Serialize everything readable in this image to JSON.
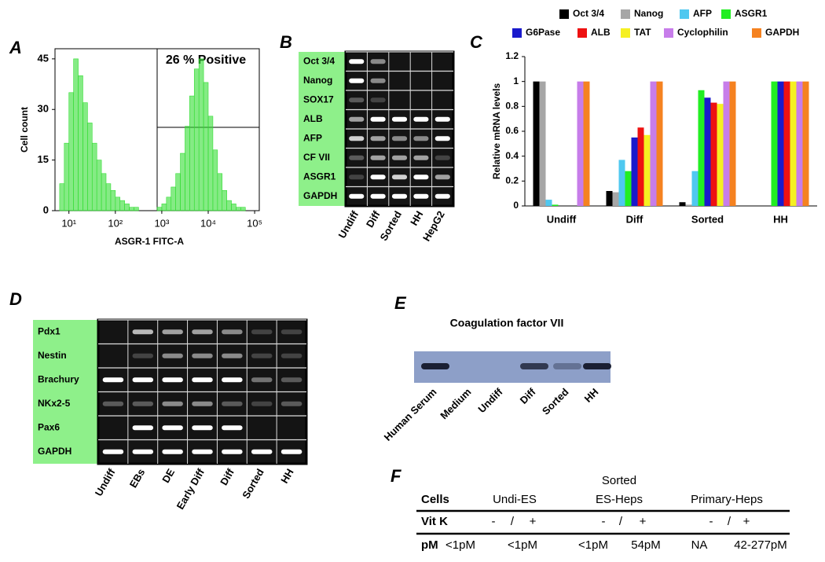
{
  "panel_labels": [
    "A",
    "B",
    "C",
    "D",
    "E",
    "F"
  ],
  "chart_data": [
    {
      "type": "histogram",
      "xlabel": "ASGR-1 FITC-A",
      "ylabel": "Cell count",
      "annotation": "26 % Positive",
      "color": "#33dd33",
      "bins": [
        0.8,
        0.9,
        1.0,
        1.1,
        1.2,
        1.3,
        1.4,
        1.5,
        1.6,
        1.7,
        1.8,
        1.9,
        2.0,
        2.1,
        2.2,
        2.3,
        2.4,
        2.5,
        2.6,
        2.7,
        2.8,
        2.9,
        3.0,
        3.1,
        3.2,
        3.3,
        3.4,
        3.5,
        3.6,
        3.7,
        3.8,
        3.9,
        4.0,
        4.1,
        4.2,
        4.3,
        4.4,
        4.5,
        4.6,
        4.7,
        4.8,
        4.9,
        5.0
      ],
      "values": [
        8,
        20,
        35,
        45,
        40,
        32,
        26,
        20,
        15,
        11,
        8,
        6,
        4,
        3,
        2,
        1,
        1,
        0,
        0,
        0,
        0,
        1,
        2,
        4,
        7,
        11,
        17,
        25,
        34,
        42,
        45,
        38,
        28,
        18,
        11,
        6,
        3,
        2,
        1,
        1,
        0,
        0
      ],
      "xlim": [
        0.7,
        5.1
      ],
      "xticks": [
        {
          "value": 1,
          "label": "10¹"
        },
        {
          "value": 2,
          "label": "10²"
        },
        {
          "value": 3,
          "label": "10³"
        },
        {
          "value": 4,
          "label": "10⁴"
        },
        {
          "value": 5,
          "label": "10⁵"
        }
      ],
      "ylim": [
        0,
        48
      ],
      "yticks": [
        0,
        15,
        30,
        45
      ]
    },
    {
      "type": "bar",
      "ylabel": "Relative mRNA levels",
      "categories": [
        "Undiff",
        "Diff",
        "Sorted",
        "HH"
      ],
      "series": [
        {
          "name": "Oct 3/4",
          "color": "#000000",
          "values": [
            1,
            0.12,
            0.03,
            0
          ]
        },
        {
          "name": "Nanog",
          "color": "#a6a6a6",
          "values": [
            1,
            0.11,
            0.01,
            0
          ]
        },
        {
          "name": "AFP",
          "color": "#4fc8f0",
          "values": [
            0.05,
            0.37,
            0.28,
            0
          ]
        },
        {
          "name": "ASGR1",
          "color": "#22ee22",
          "values": [
            0.01,
            0.28,
            0.93,
            1
          ]
        },
        {
          "name": "G6Pase",
          "color": "#1a1acc",
          "values": [
            0,
            0.55,
            0.87,
            1
          ]
        },
        {
          "name": "ALB",
          "color": "#ee1111",
          "values": [
            0,
            0.63,
            0.83,
            1
          ]
        },
        {
          "name": "TAT",
          "color": "#f5f022",
          "values": [
            0,
            0.57,
            0.82,
            1
          ]
        },
        {
          "name": "Cyclophilin",
          "color": "#c77dea",
          "values": [
            1,
            1,
            1,
            1
          ]
        },
        {
          "name": "GAPDH",
          "color": "#f58220",
          "values": [
            1,
            1,
            1,
            1
          ]
        }
      ],
      "ylim": [
        0,
        1.2
      ],
      "yticks": [
        0,
        0.2,
        0.4,
        0.6,
        0.8,
        1,
        1.2
      ]
    }
  ],
  "panel_b": {
    "rows": [
      "Oct 3/4",
      "Nanog",
      "SOX17",
      "ALB",
      "AFP",
      "CF VII",
      "ASGR1",
      "GAPDH"
    ],
    "lanes": [
      "Undiff",
      "Diff",
      "Sorted",
      "HH",
      "HepG2"
    ]
  },
  "panel_d": {
    "rows": [
      "Pdx1",
      "Nestin",
      "Brachury",
      "NKx2-5",
      "Pax6",
      "GAPDH"
    ],
    "lanes": [
      "Undiff",
      "EBs",
      "DE",
      "Early Diff",
      "Diff",
      "Sorted",
      "HH"
    ]
  },
  "panel_e": {
    "title": "Coagulation factor VII",
    "lanes": [
      "Human Serum",
      "Medium",
      "Undiff",
      "Diff",
      "Sorted",
      "HH"
    ]
  },
  "panel_f": {
    "header": [
      "Cells",
      "Undi-ES",
      [
        "Sorted",
        "ES-Heps"
      ],
      "Primary-Heps"
    ],
    "rows": [
      {
        "label": "Vit K",
        "cells": [
          "-",
          "/",
          "+",
          "-",
          "/",
          "+",
          "-",
          "/",
          "+"
        ]
      },
      {
        "label": "pM",
        "cells": [
          "<1pM",
          "<1pM",
          "<1pM",
          "54pM",
          "NA",
          "42-277pM"
        ]
      }
    ]
  }
}
